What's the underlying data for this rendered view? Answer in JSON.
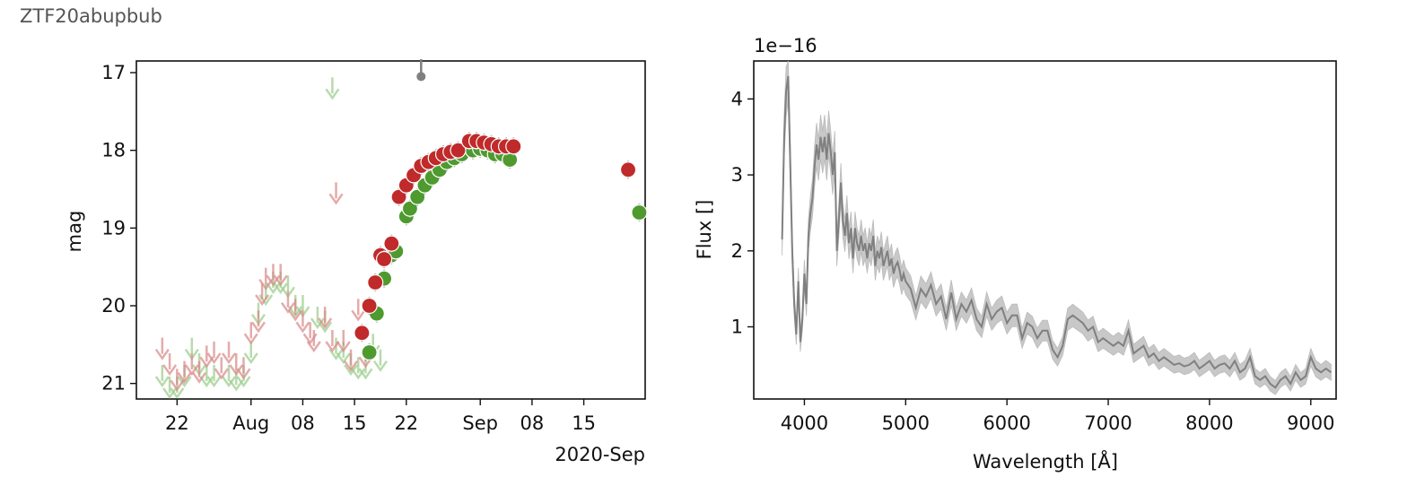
{
  "title": "ZTF20abupbub",
  "chart_data": [
    {
      "type": "scatter",
      "ylabel": "mag",
      "ylim": [
        21.2,
        16.85
      ],
      "yticks": [
        17,
        18,
        19,
        20,
        21
      ],
      "xlim_days": [
        -14.5,
        54.3
      ],
      "xticks": [
        {
          "day": -9,
          "label": "22"
        },
        {
          "day": 1,
          "label": "Aug"
        },
        {
          "day": 8,
          "label": "08"
        },
        {
          "day": 15,
          "label": "15"
        },
        {
          "day": 22,
          "label": "22"
        },
        {
          "day": 32,
          "label": "Sep"
        },
        {
          "day": 39,
          "label": "08"
        },
        {
          "day": 46,
          "label": "15"
        }
      ],
      "x_offset_label": "2020-Sep",
      "colors": {
        "g": "#4e9a2f",
        "r": "#c02a2a",
        "g_limit": "#9acd8a",
        "r_limit": "#d98888",
        "other": "#808080"
      },
      "detections_g": [
        [
          17,
          20.6
        ],
        [
          18,
          20.1
        ],
        [
          19,
          19.65
        ],
        [
          20,
          19.35
        ],
        [
          20.6,
          19.3
        ],
        [
          22,
          18.85
        ],
        [
          22.5,
          18.75
        ],
        [
          23.5,
          18.6
        ],
        [
          24.5,
          18.45
        ],
        [
          25.5,
          18.35
        ],
        [
          26.5,
          18.25
        ],
        [
          27.5,
          18.15
        ],
        [
          28.5,
          18.1
        ],
        [
          29.5,
          18.05
        ],
        [
          31,
          18
        ],
        [
          32,
          17.98
        ],
        [
          33,
          18
        ],
        [
          34,
          18.05
        ],
        [
          35,
          18.05
        ],
        [
          36,
          18.12
        ],
        [
          53.5,
          18.8
        ]
      ],
      "detections_r": [
        [
          16,
          20.35
        ],
        [
          17,
          20
        ],
        [
          17.8,
          19.7
        ],
        [
          18.5,
          19.35
        ],
        [
          19,
          19.4
        ],
        [
          20,
          19.2
        ],
        [
          21,
          18.6
        ],
        [
          22,
          18.45
        ],
        [
          23,
          18.32
        ],
        [
          24,
          18.2
        ],
        [
          25,
          18.15
        ],
        [
          26,
          18.1
        ],
        [
          27,
          18.05
        ],
        [
          28,
          18.02
        ],
        [
          29,
          18
        ],
        [
          30.5,
          17.88
        ],
        [
          31.5,
          17.88
        ],
        [
          32.5,
          17.9
        ],
        [
          33.5,
          17.92
        ],
        [
          34.5,
          17.95
        ],
        [
          35.5,
          17.95
        ],
        [
          36.5,
          17.95
        ],
        [
          52,
          18.25
        ]
      ],
      "limits_g": [
        [
          -11,
          20.9
        ],
        [
          -10,
          21.05
        ],
        [
          -9,
          21.05
        ],
        [
          -8,
          20.9
        ],
        [
          -7,
          20.55
        ],
        [
          -6,
          20.75
        ],
        [
          -5,
          20.9
        ],
        [
          -4,
          20.9
        ],
        [
          -2,
          20.9
        ],
        [
          -1,
          20.95
        ],
        [
          0,
          20.9
        ],
        [
          1,
          20.6
        ],
        [
          2,
          20.1
        ],
        [
          3,
          19.85
        ],
        [
          4,
          19.7
        ],
        [
          5,
          19.7
        ],
        [
          6,
          19.75
        ],
        [
          7,
          20
        ],
        [
          8,
          20
        ],
        [
          10,
          20.15
        ],
        [
          11,
          20.2
        ],
        [
          12,
          17.2
        ],
        [
          12.5,
          20.55
        ],
        [
          13.5,
          20.6
        ],
        [
          14.5,
          20.75
        ],
        [
          15.5,
          20.8
        ],
        [
          16.5,
          20.8
        ],
        [
          17.5,
          20.5
        ],
        [
          18.5,
          20.7
        ]
      ],
      "limits_r": [
        [
          -11,
          20.55
        ],
        [
          -10,
          20.75
        ],
        [
          -9,
          20.95
        ],
        [
          -8,
          20.85
        ],
        [
          -7,
          20.75
        ],
        [
          -6,
          20.85
        ],
        [
          -5,
          20.65
        ],
        [
          -4,
          20.6
        ],
        [
          -3,
          20.8
        ],
        [
          -2,
          20.6
        ],
        [
          -1,
          20.75
        ],
        [
          0,
          20.8
        ],
        [
          1,
          20.35
        ],
        [
          2,
          20.2
        ],
        [
          2.5,
          19.85
        ],
        [
          3,
          19.65
        ],
        [
          4,
          19.6
        ],
        [
          5,
          19.6
        ],
        [
          6,
          19.95
        ],
        [
          7,
          20.05
        ],
        [
          8,
          20.2
        ],
        [
          9,
          20.35
        ],
        [
          9.5,
          20.45
        ],
        [
          11,
          20.15
        ],
        [
          12,
          20.45
        ],
        [
          12.5,
          18.55
        ],
        [
          13.5,
          20.45
        ],
        [
          14.5,
          20.7
        ],
        [
          15.5,
          20.05
        ],
        [
          16.5,
          20.65
        ]
      ],
      "detections_other": [
        [
          24,
          17.05
        ]
      ]
    },
    {
      "type": "line",
      "xlabel": "Wavelength [Å]",
      "ylabel": "Flux []",
      "offset_text": "1e−16",
      "xlim": [
        3500,
        9250
      ],
      "ylim": [
        0.05,
        4.5
      ],
      "xticks": [
        4000,
        5000,
        6000,
        7000,
        8000,
        9000
      ],
      "yticks": [
        1,
        2,
        3,
        4
      ],
      "line_color": "#808080",
      "band_color": "#c8c8c8",
      "series": [
        {
          "name": "spectrum",
          "x": [
            3780,
            3800,
            3820,
            3840,
            3860,
            3880,
            3900,
            3920,
            3940,
            3960,
            3980,
            4000,
            4020,
            4040,
            4060,
            4080,
            4100,
            4120,
            4140,
            4160,
            4180,
            4200,
            4220,
            4240,
            4260,
            4280,
            4300,
            4320,
            4340,
            4360,
            4380,
            4400,
            4420,
            4440,
            4460,
            4480,
            4500,
            4520,
            4540,
            4560,
            4580,
            4600,
            4620,
            4640,
            4660,
            4680,
            4700,
            4720,
            4740,
            4760,
            4780,
            4800,
            4820,
            4840,
            4860,
            4880,
            4900,
            4920,
            4940,
            4960,
            4980,
            5000,
            5050,
            5100,
            5150,
            5200,
            5250,
            5300,
            5350,
            5400,
            5450,
            5500,
            5550,
            5600,
            5650,
            5700,
            5750,
            5800,
            5850,
            5900,
            5950,
            6000,
            6050,
            6100,
            6150,
            6200,
            6250,
            6300,
            6350,
            6400,
            6450,
            6500,
            6550,
            6600,
            6650,
            6700,
            6750,
            6800,
            6850,
            6900,
            6950,
            7000,
            7050,
            7100,
            7150,
            7200,
            7250,
            7300,
            7350,
            7400,
            7450,
            7500,
            7550,
            7600,
            7650,
            7700,
            7750,
            7800,
            7850,
            7900,
            7950,
            8000,
            8050,
            8100,
            8150,
            8200,
            8250,
            8300,
            8350,
            8400,
            8450,
            8500,
            8550,
            8600,
            8650,
            8700,
            8750,
            8800,
            8850,
            8900,
            8950,
            9000,
            9050,
            9100,
            9150,
            9200
          ],
          "flux": [
            2.15,
            3.5,
            4.1,
            4.3,
            3.2,
            2.0,
            1.3,
            0.9,
            1.6,
            0.8,
            1.1,
            1.7,
            1.3,
            2.2,
            2.5,
            2.7,
            3.1,
            3.4,
            3.2,
            3.5,
            3.3,
            3.5,
            3.2,
            3.55,
            3.3,
            3.0,
            3.3,
            2.0,
            2.4,
            2.9,
            2.4,
            2.2,
            2.5,
            2.1,
            2.3,
            1.9,
            2.3,
            2.1,
            2.0,
            2.2,
            2.0,
            2.1,
            1.9,
            2.1,
            2.0,
            2.2,
            1.8,
            2.0,
            1.9,
            2.05,
            1.8,
            1.9,
            2.0,
            1.8,
            1.9,
            1.7,
            1.8,
            1.85,
            1.75,
            1.6,
            1.7,
            1.6,
            1.5,
            1.25,
            1.5,
            1.4,
            1.55,
            1.3,
            1.4,
            1.1,
            1.45,
            1.1,
            1.3,
            1.2,
            1.35,
            1.1,
            1.0,
            1.3,
            1.1,
            1.2,
            1.25,
            1.05,
            1.15,
            1.15,
            0.85,
            1.05,
            1.0,
            0.85,
            0.95,
            0.95,
            0.7,
            0.6,
            0.75,
            1.1,
            1.15,
            1.1,
            1.05,
            0.95,
            1.0,
            0.8,
            0.85,
            0.8,
            0.75,
            0.8,
            0.75,
            0.95,
            0.65,
            0.7,
            0.75,
            0.6,
            0.65,
            0.55,
            0.6,
            0.55,
            0.5,
            0.52,
            0.48,
            0.5,
            0.55,
            0.45,
            0.5,
            0.55,
            0.45,
            0.5,
            0.52,
            0.45,
            0.55,
            0.4,
            0.45,
            0.6,
            0.35,
            0.3,
            0.35,
            0.25,
            0.2,
            0.3,
            0.35,
            0.25,
            0.4,
            0.3,
            0.35,
            0.6,
            0.45,
            0.4,
            0.45,
            0.4
          ]
        }
      ]
    }
  ]
}
